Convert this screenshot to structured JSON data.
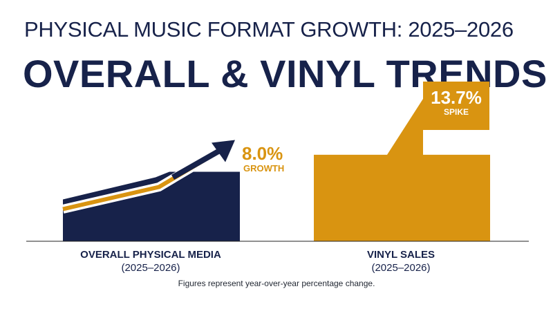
{
  "header": {
    "title": "PHYSICAL MUSIC FORMAT GROWTH: 2025–2026",
    "headline": "OVERALL & VINYL TRENDS"
  },
  "chart_data": {
    "type": "bar",
    "categories": [
      "OVERALL PHYSICAL MEDIA",
      "VINYL SALES"
    ],
    "category_periods": [
      "(2025–2026)",
      "(2025–2026)"
    ],
    "values": [
      8.0,
      13.7
    ],
    "unit": "%",
    "value_labels": [
      "8.0%",
      "13.7%"
    ],
    "value_captions": [
      "GROWTH",
      "SPIKE"
    ],
    "ylim": [
      0,
      16
    ],
    "grid": false,
    "legend": "none",
    "title": "",
    "xlabel": "",
    "ylabel": ""
  },
  "footnote": "Figures represent year-over-year percentage change.",
  "colors": {
    "navy": "#17224a",
    "gold": "#d99411",
    "white": "#ffffff"
  }
}
